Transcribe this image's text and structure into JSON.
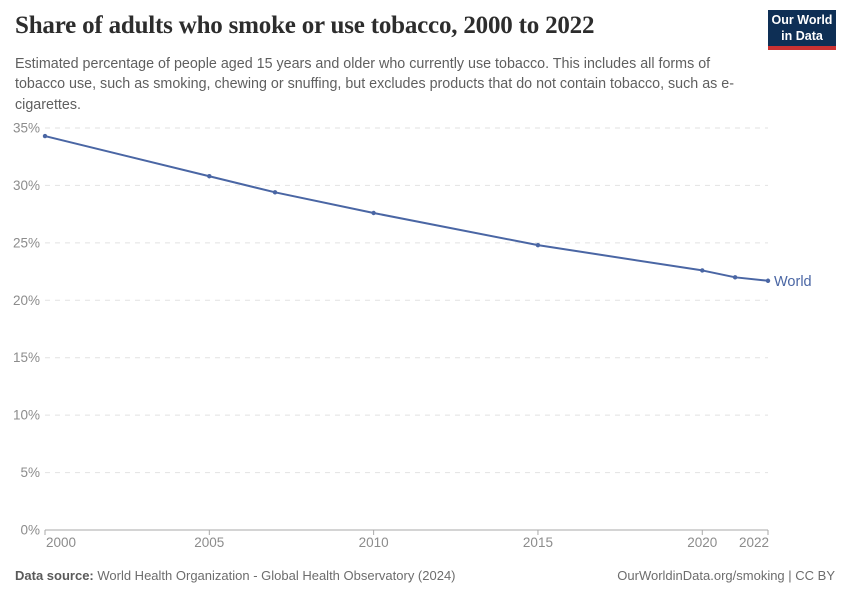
{
  "header": {
    "title": "Share of adults who smoke or use tobacco, 2000 to 2022",
    "subtitle": "Estimated percentage of people aged 15 years and older who currently use tobacco. This includes all forms of tobacco use, such as smoking, chewing or snuffing, but excludes products that do not contain tobacco, such as e-cigarettes.",
    "logo": {
      "line1": "Our World",
      "line2": "in Data",
      "bg_color": "#0e2f55",
      "accent_color": "#cb3232"
    }
  },
  "chart_data": {
    "type": "line",
    "title": "Share of adults who smoke or use tobacco, 2000 to 2022",
    "xlabel": "",
    "ylabel": "",
    "xlim": [
      2000,
      2022
    ],
    "ylim": [
      0,
      35
    ],
    "grid": "horizontal-dashed",
    "legend": "end-of-line-label",
    "x_ticks": [
      2000,
      2005,
      2010,
      2015,
      2020,
      2022
    ],
    "x_tick_labels": [
      "2000",
      "2005",
      "2010",
      "2015",
      "2020",
      "2022"
    ],
    "y_ticks": [
      0,
      5,
      10,
      15,
      20,
      25,
      30,
      35
    ],
    "y_tick_labels": [
      "0%",
      "5%",
      "10%",
      "15%",
      "20%",
      "25%",
      "30%",
      "35%"
    ],
    "series": [
      {
        "name": "World",
        "color": "#4a66a4",
        "x": [
          2000,
          2005,
          2007,
          2010,
          2015,
          2020,
          2021,
          2022
        ],
        "values": [
          34.3,
          30.8,
          29.4,
          27.6,
          24.8,
          22.6,
          22.0,
          21.7
        ]
      }
    ]
  },
  "colors": {
    "gridline": "#e2e2e2",
    "axis": "#a9a9a9",
    "tick_label": "#8c8c8c"
  },
  "footer": {
    "source_label": "Data source:",
    "source_text": " World Health Organization - Global Health Observatory (2024)",
    "right_text": "OurWorldinData.org/smoking | CC BY"
  }
}
